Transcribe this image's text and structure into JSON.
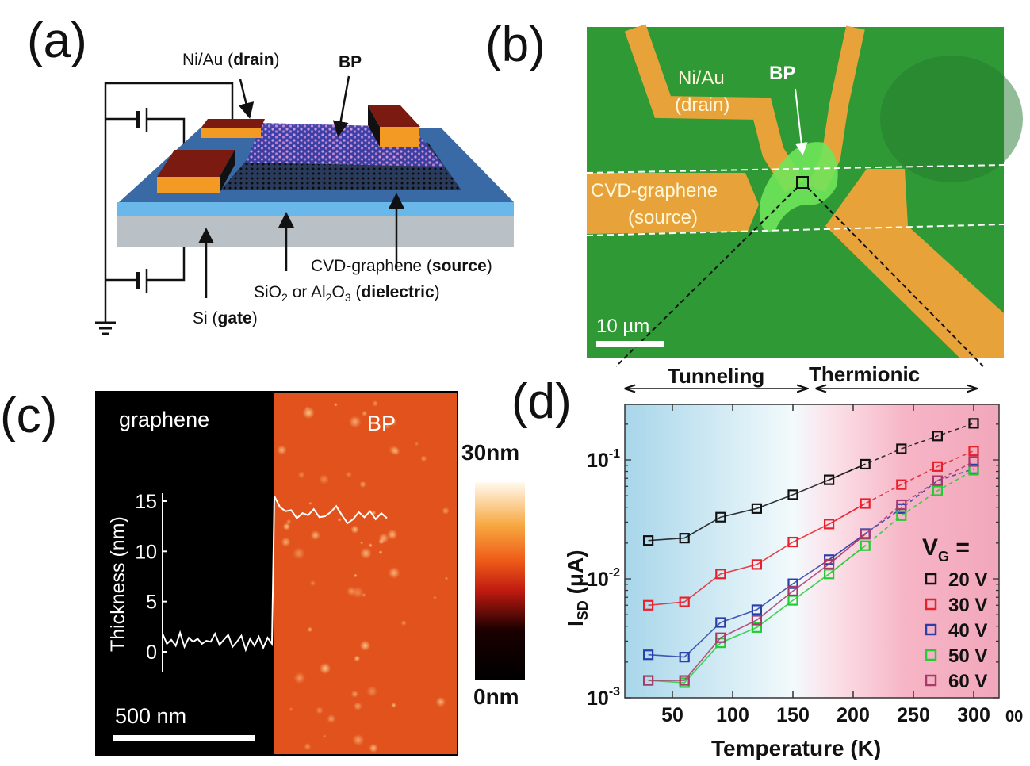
{
  "panels": {
    "a": {
      "tag": "(a)",
      "drain": {
        "p1": "Ni/Au (",
        "b": "drain",
        "p2": ")"
      },
      "bp": "BP",
      "source": {
        "p1": "CVD-graphene (",
        "b": "source",
        "p2": ")"
      },
      "dielectric": {
        "p1": "SiO",
        "s1": "2",
        "p2": " or Al",
        "s2": "2",
        "p3": "O",
        "s3": "3",
        "p4": " (",
        "b": "dielectric",
        "p5": ")"
      },
      "gate": {
        "p1": "Si (",
        "b": "gate",
        "p2": ")"
      }
    },
    "b": {
      "tag": "(b)",
      "drain_line1": "Ni/Au",
      "drain_line2": "(drain)",
      "bp": "BP",
      "source_line1": "CVD-graphene",
      "source_line2": "(source)",
      "scale_bar": "10 µm"
    },
    "c": {
      "tag": "(c)",
      "graphene": "graphene",
      "bp": "BP",
      "colorbar_max": "30nm",
      "colorbar_min": "0nm",
      "scale_bar": "500 nm",
      "profile_ylabel": "Thickness (nm)",
      "profile_ticks": [
        "0",
        "5",
        "10",
        "15"
      ]
    },
    "d": {
      "tag": "(d)",
      "regime_left": "Tunneling",
      "regime_right": "Thermionic",
      "stray_text": "00"
    }
  },
  "colors": {
    "substrate_top": "#3a6aa6",
    "dielectric": "#6ab8ea",
    "silicon": "#b9c0c6",
    "electrode_top": "#7a1a10",
    "electrode_side": "#f39a25",
    "optical_bg": "#2f9a35",
    "optical_metal": "#e8a23a",
    "bp_flake": "#6fe45a",
    "afm_bp": "#e2521c"
  },
  "chart_data": [
    {
      "type": "scatter",
      "panel": "d",
      "xlabel": "Temperature (K)",
      "ylabel": {
        "main": "I",
        "sub": "SD",
        "rest": " (μA)"
      },
      "x_ticks": [
        "50",
        "100",
        "150",
        "200",
        "250",
        "300"
      ],
      "y_ticks": [
        {
          "base": "10",
          "exp": "-1"
        },
        {
          "base": "10",
          "exp": "-2"
        },
        {
          "base": "10",
          "exp": "-3"
        }
      ],
      "xlim": [
        10,
        320
      ],
      "ylim": [
        0.001,
        0.316
      ],
      "yscale": "log",
      "legend_title": {
        "main": "V",
        "sub": "G",
        "rest": " ="
      },
      "legend_placement": "bottom-right",
      "background": "gradient blue (tunneling) to pink (thermionic)",
      "x": [
        30,
        60,
        90,
        120,
        150,
        180,
        210,
        240,
        270,
        300
      ],
      "series": [
        {
          "name": "20 V",
          "color": "#111111",
          "values": [
            0.021,
            0.022,
            0.033,
            0.039,
            0.051,
            0.068,
            0.092,
            0.124,
            0.159,
            0.203
          ]
        },
        {
          "name": "30 V",
          "color": "#e8202a",
          "values": [
            0.006,
            0.0064,
            0.011,
            0.0132,
            0.0204,
            0.0289,
            0.043,
            0.062,
            0.088,
            0.119
          ]
        },
        {
          "name": "40 V",
          "color": "#2a3ea8",
          "values": [
            0.0023,
            0.0022,
            0.0043,
            0.0055,
            0.0091,
            0.0145,
            0.024,
            0.039,
            0.067,
            0.084
          ]
        },
        {
          "name": "50 V",
          "color": "#22cc33",
          "values": [
            0.0014,
            0.00134,
            0.0029,
            0.0039,
            0.0066,
            0.011,
            0.019,
            0.034,
            0.055,
            0.082
          ]
        },
        {
          "name": "60 V",
          "color": "#a83a6a",
          "values": [
            0.0014,
            0.0014,
            0.0032,
            0.0045,
            0.0079,
            0.0133,
            0.0237,
            0.042,
            0.067,
            0.097
          ]
        }
      ]
    },
    {
      "type": "line",
      "panel": "c",
      "ylabel": "Thickness (nm)",
      "ylim": [
        -1.5,
        16
      ],
      "thickness_nm": [
        1.8,
        0.8,
        1.2,
        0.6,
        1.9,
        0.5,
        1.4,
        1.0,
        1.3,
        0.8,
        1.1,
        1.0,
        1.8,
        0.7,
        1.2,
        1.7,
        0.5,
        1.0,
        1.6,
        0.2,
        1.3,
        0.6,
        1.5,
        0.4,
        1.4,
        0.8,
        15.5,
        14.4,
        14.0,
        14.1,
        13.3,
        13.8,
        13.6,
        14.2,
        13.4,
        13.5,
        13.9,
        14.5,
        13.6,
        12.8,
        13.2,
        13.9,
        13.4,
        14.0,
        13.2,
        13.8,
        13.3
      ]
    }
  ]
}
